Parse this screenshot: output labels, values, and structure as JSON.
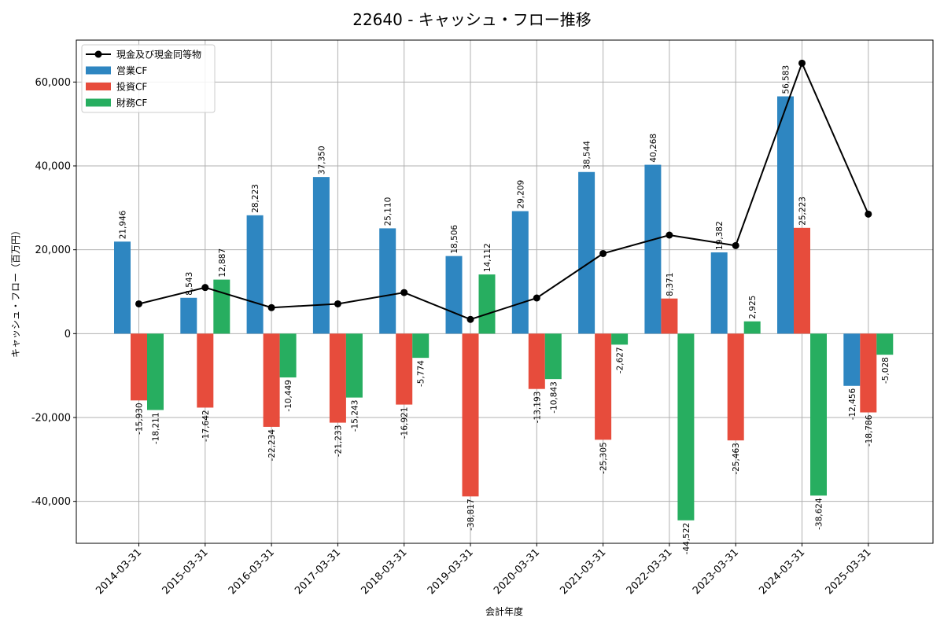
{
  "chart_data": {
    "type": "bar",
    "title": "22640 - キャッシュ・フロー推移",
    "xlabel": "会計年度",
    "ylabel": "キャッシュ・フロー（百万円）",
    "ylim": [
      -50000,
      70000
    ],
    "yticks": [
      -40000,
      -20000,
      0,
      20000,
      40000,
      60000
    ],
    "ytick_labels": [
      "-40,000",
      "-20,000",
      "0",
      "20,000",
      "40,000",
      "60,000"
    ],
    "grid": true,
    "legend_position": "top-left",
    "categories": [
      "2014-03-31",
      "2015-03-31",
      "2016-03-31",
      "2017-03-31",
      "2018-03-31",
      "2019-03-31",
      "2020-03-31",
      "2021-03-31",
      "2022-03-31",
      "2023-03-31",
      "2024-03-31",
      "2025-03-31"
    ],
    "series": [
      {
        "name": "営業CF",
        "kind": "bar",
        "color": "#2e86c1",
        "values": [
          21946,
          8543,
          28223,
          37350,
          25110,
          18506,
          29209,
          38544,
          40268,
          19382,
          56583,
          -12456
        ],
        "labels": [
          "21,946",
          "8,543",
          "28,223",
          "37,350",
          "25,110",
          "18,506",
          "29,209",
          "38,544",
          "40,268",
          "19,382",
          "56,583",
          "-12,456"
        ]
      },
      {
        "name": "投資CF",
        "kind": "bar",
        "color": "#e74c3c",
        "values": [
          -15930,
          -17642,
          -22234,
          -21233,
          -16921,
          -38817,
          -13193,
          -25305,
          8371,
          -25463,
          25223,
          -18786
        ],
        "labels": [
          "-15,930",
          "-17,642",
          "-22,234",
          "-21,233",
          "-16,921",
          "-38,817",
          "-13,193",
          "-25,305",
          "8,371",
          "-25,463",
          "25,223",
          "-18,786"
        ]
      },
      {
        "name": "財務CF",
        "kind": "bar",
        "color": "#27ae60",
        "values": [
          -18211,
          12887,
          -10449,
          -15243,
          -5774,
          14112,
          -10843,
          -2627,
          -44522,
          2925,
          -38624,
          -5028
        ],
        "labels": [
          "-18,211",
          "12,887",
          "-10,449",
          "-15,243",
          "-5,774",
          "14,112",
          "-10,843",
          "-2,627",
          "-44,522",
          "2,925",
          "-38,624",
          "-5,028"
        ]
      },
      {
        "name": "現金及び現金同等物",
        "kind": "line",
        "color": "#000000",
        "values": [
          7100,
          11000,
          6200,
          7100,
          9800,
          3400,
          8500,
          19100,
          23500,
          21000,
          64500,
          28500
        ]
      }
    ]
  }
}
